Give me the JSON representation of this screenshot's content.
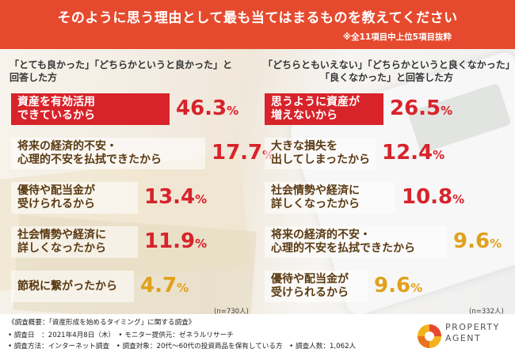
{
  "header": {
    "title": "そのように思う理由として最も当てはまるものを教えてください",
    "note": "※全11項目中上位5項目抜粋"
  },
  "left": {
    "heading_line1": "「とても良かった」「どちらかというと良かった」と",
    "heading_line2": "回答した方",
    "n": "(n=730人)"
  },
  "right": {
    "heading_line1": "「どちらともいえない」「どちらかというと良くなかった」",
    "heading_line2": "「良くなかった」と回答した方",
    "n": "(n=332人)"
  },
  "chart_data": [
    {
      "type": "bar",
      "categories": [
        [
          "資産を有効活用",
          "できているから"
        ],
        [
          "将来の経済的不安・",
          "心理的不安を払拭できたから"
        ],
        [
          "優待や配当金が",
          "受けられるから"
        ],
        [
          "社会情勢や経済に",
          "詳しくなったから"
        ],
        [
          "節税に繋がったから"
        ]
      ],
      "values": [
        46.3,
        17.7,
        13.4,
        11.9,
        4.7
      ],
      "value_labels": [
        "46.3",
        "17.7",
        "13.4",
        "11.9",
        "4.7"
      ],
      "unit": "%"
    },
    {
      "type": "bar",
      "categories": [
        [
          "思うように資産が",
          "増えないから"
        ],
        [
          "大きな損失を",
          "出してしまったから"
        ],
        [
          "社会情勢や経済に",
          "詳しくなったから"
        ],
        [
          "将来の経済的不安・",
          "心理的不安を払拭できたから"
        ],
        [
          "優待や配当金が",
          "受けられるから"
        ]
      ],
      "values": [
        26.5,
        12.4,
        10.8,
        9.6,
        9.6
      ],
      "value_labels": [
        "26.5",
        "12.4",
        "10.8",
        "9.6",
        "9.6"
      ],
      "unit": "%"
    }
  ],
  "colors": {
    "accent": "#d8232a",
    "header": "#e64a2e",
    "low": "#e0a11a"
  },
  "footer": {
    "line1": "《調査概要：「資産形成を始めるタイミング」に関する調査》",
    "line2": "• 調査日　：2021年4月8日（木）　• モニター提供元：ゼネラルリサーチ",
    "line3": "• 調査方法：インターネット調査　• 調査対象：20代〜60代の投資商品を保有している方　• 調査人数：1,062人"
  },
  "logo": {
    "line1": "PROPERTY",
    "line2": "AGENT"
  }
}
